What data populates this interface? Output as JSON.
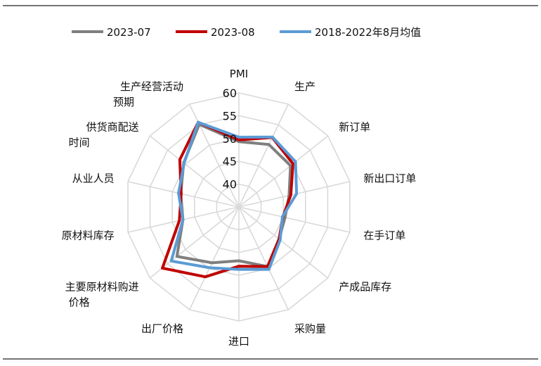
{
  "chart_data": {
    "type": "radar",
    "categories": [
      "PMI",
      "生产",
      "新订单",
      "新出口订单",
      "在手订单",
      "产成品库存",
      "采购量",
      "进口",
      "出厂价格",
      "主要原材料购进价格",
      "原材料库存",
      "从业人员",
      "供货商配送时间",
      "生产经营活动预期"
    ],
    "series": [
      {
        "name": "2023-07",
        "color": "#7f7f7f",
        "values": [
          49.3,
          50.2,
          49.5,
          46.3,
          45.4,
          46.3,
          49.5,
          46.8,
          48.6,
          52.4,
          47.6,
          48.1,
          50.5,
          55.1
        ]
      },
      {
        "name": "2023-08",
        "color": "#c00000",
        "values": [
          49.7,
          51.9,
          50.2,
          46.7,
          44.9,
          46.3,
          49.5,
          48.0,
          52.0,
          56.5,
          48.4,
          48.0,
          51.6,
          55.6
        ]
      },
      {
        "name": "2018-2022年8月均值",
        "color": "#5b9bd5",
        "values": [
          50.3,
          52.0,
          50.9,
          48.0,
          44.8,
          46.6,
          50.2,
          48.7,
          49.8,
          54.0,
          47.6,
          48.6,
          50.4,
          55.6
        ]
      }
    ],
    "rlim": [
      35,
      60
    ],
    "ticks": [
      40,
      45,
      50,
      55,
      60
    ],
    "tick_labels": [
      "40",
      "45",
      "50",
      "55",
      "60"
    ],
    "legend_position": "top",
    "grid": true
  }
}
